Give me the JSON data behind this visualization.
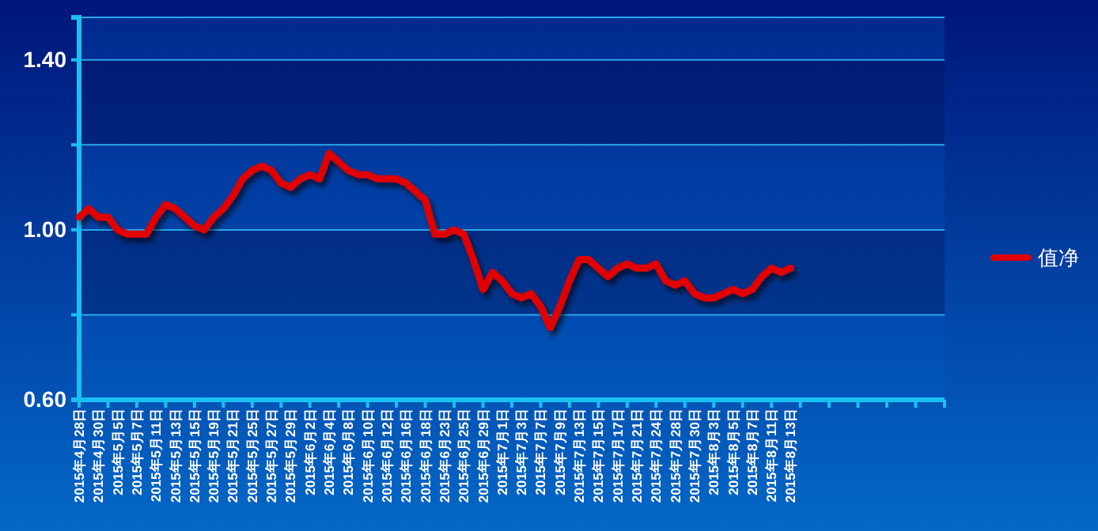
{
  "chart_data": {
    "type": "line",
    "categories": [
      "2015年4月28日",
      null,
      "2015年4月30日",
      null,
      "2015年5月5日",
      null,
      "2015年5月7日",
      null,
      "2015年5月11日",
      null,
      "2015年5月13日",
      null,
      "2015年5月15日",
      null,
      "2015年5月19日",
      null,
      "2015年5月21日",
      null,
      "2015年5月25日",
      null,
      "2015年5月27日",
      null,
      "2015年5月29日",
      null,
      "2015年6月2日",
      null,
      "2015年6月4日",
      null,
      "2015年6月8日",
      null,
      "2015年6月10日",
      null,
      "2015年6月12日",
      null,
      "2015年6月16日",
      null,
      "2015年6月18日",
      null,
      "2015年6月23日",
      null,
      "2015年6月25日",
      null,
      "2015年6月29日",
      null,
      "2015年7月1日",
      null,
      "2015年7月3日",
      null,
      "2015年7月7日",
      null,
      "2015年7月9日",
      null,
      "2015年7月13日",
      null,
      "2015年7月15日",
      null,
      "2015年7月17日",
      null,
      "2015年7月21日",
      null,
      "2015年7月24日",
      null,
      "2015年7月28日",
      null,
      "2015年7月30日",
      null,
      "2015年8月3日",
      null,
      "2015年8月5日",
      null,
      "2015年8月7日",
      null,
      "2015年8月11日",
      null,
      "2015年8月13日",
      null,
      null,
      null,
      null,
      null,
      null,
      null,
      null,
      null,
      null,
      null,
      null,
      null,
      null,
      null,
      null
    ],
    "series": [
      {
        "name": "值净",
        "color": "#e00000",
        "values": [
          1.03,
          1.05,
          1.03,
          1.03,
          1.0,
          0.99,
          0.99,
          0.99,
          1.03,
          1.06,
          1.05,
          1.03,
          1.01,
          1.0,
          1.03,
          1.05,
          1.08,
          1.12,
          1.14,
          1.15,
          1.14,
          1.11,
          1.1,
          1.12,
          1.13,
          1.12,
          1.18,
          1.16,
          1.14,
          1.13,
          1.13,
          1.12,
          1.12,
          1.12,
          1.11,
          1.09,
          1.07,
          0.99,
          0.99,
          1.0,
          0.99,
          0.93,
          0.86,
          0.9,
          0.88,
          0.85,
          0.84,
          0.85,
          0.82,
          0.77,
          0.82,
          0.88,
          0.93,
          0.93,
          0.91,
          0.89,
          0.91,
          0.92,
          0.91,
          0.91,
          0.92,
          0.88,
          0.87,
          0.88,
          0.85,
          0.84,
          0.84,
          0.85,
          0.86,
          0.85,
          0.86,
          0.89,
          0.91,
          0.9,
          0.91,
          null,
          null,
          null,
          null,
          null,
          null,
          null,
          null,
          null,
          null,
          null,
          null,
          null,
          null,
          null,
          null
        ]
      }
    ],
    "ylim": [
      0.6,
      1.5
    ],
    "yticks": [
      {
        "value": 0.6,
        "label": "0.60"
      },
      {
        "value": 0.8,
        "label": null
      },
      {
        "value": 1.0,
        "label": "1.00"
      },
      {
        "value": 1.2,
        "label": null
      },
      {
        "value": 1.4,
        "label": "1.40"
      },
      {
        "value": 1.5,
        "label": null
      }
    ],
    "grid": "y",
    "legend": "right",
    "marker": "none",
    "line_style": "solid"
  }
}
